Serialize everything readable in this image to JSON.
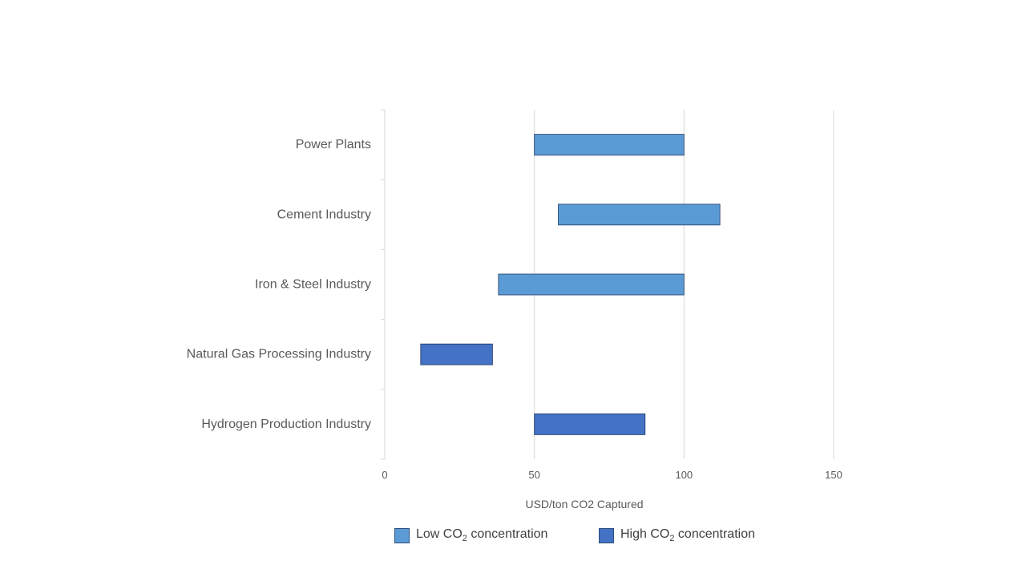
{
  "chart_data": {
    "type": "bar",
    "orientation": "horizontal-floating",
    "categories": [
      "Power Plants",
      "Cement Industry",
      "Iron & Steel Industry",
      "Natural Gas Processing Industry",
      "Hydrogen Production Industry"
    ],
    "ranges": [
      {
        "category": "Power Plants",
        "min": 50,
        "max": 100,
        "series": "Low CO2 concentration"
      },
      {
        "category": "Cement Industry",
        "min": 58,
        "max": 112,
        "series": "Low CO2 concentration"
      },
      {
        "category": "Iron & Steel Industry",
        "min": 38,
        "max": 100,
        "series": "Low CO2 concentration"
      },
      {
        "category": "Natural Gas Processing Industry",
        "min": 12,
        "max": 36,
        "series": "High CO2 concentration"
      },
      {
        "category": "Hydrogen Production Industry",
        "min": 50,
        "max": 87,
        "series": "High CO2 concentration"
      }
    ],
    "series": [
      {
        "name": "Low CO2 concentration",
        "color": "#5b9bd5"
      },
      {
        "name": "High CO2 concentration",
        "color": "#4472c4"
      }
    ],
    "xlabel": "USD/ton CO2 Captured",
    "ylabel": "",
    "xlim": [
      0,
      150
    ],
    "xticks": [
      "0",
      "50",
      "100",
      "150"
    ],
    "grid": true,
    "legend_position": "bottom"
  },
  "legend": {
    "low_prefix": "Low CO",
    "low_sub": "2",
    "low_suffix": " concentration",
    "high_prefix": "High CO",
    "high_sub": "2",
    "high_suffix": " concentration"
  },
  "colors": {
    "low": "#5b9bd5",
    "high": "#4472c4",
    "bar_border": "#1f3864",
    "grid": "#d9d9d9"
  }
}
